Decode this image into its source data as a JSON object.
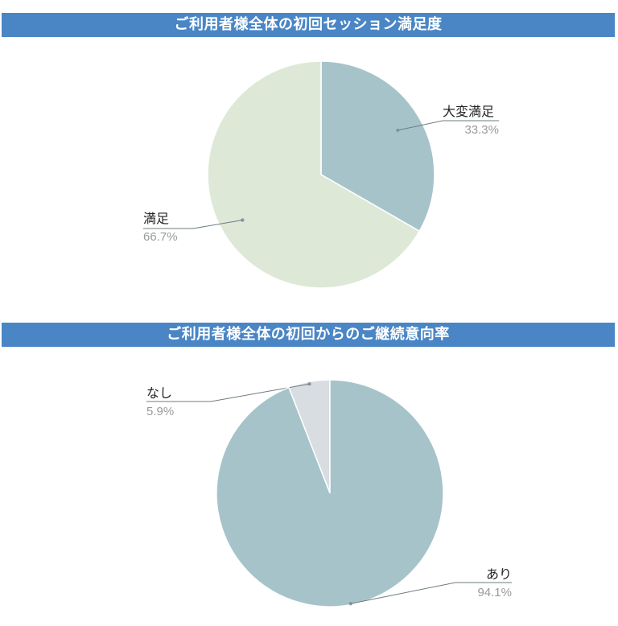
{
  "charts": {
    "satisfaction": {
      "title": "ご利用者様全体の初回セッション満足度"
    },
    "continuation": {
      "title": "ご利用者様全体の初回からのご継続意向率"
    }
  },
  "chart_data": [
    {
      "type": "pie",
      "title": "ご利用者様全体の初回セッション満足度",
      "slices": [
        {
          "label": "大変満足",
          "value": 33.3,
          "display": "33.3%",
          "color": "#a6c3ca"
        },
        {
          "label": "満足",
          "value": 66.7,
          "display": "66.7%",
          "color": "#dde9d6"
        }
      ]
    },
    {
      "type": "pie",
      "title": "ご利用者様全体の初回からのご継続意向率",
      "slices": [
        {
          "label": "なし",
          "value": 5.9,
          "display": "5.9%",
          "color": "#d8dde2"
        },
        {
          "label": "あり",
          "value": 94.1,
          "display": "94.1%",
          "color": "#a6c3ca"
        }
      ]
    }
  ]
}
